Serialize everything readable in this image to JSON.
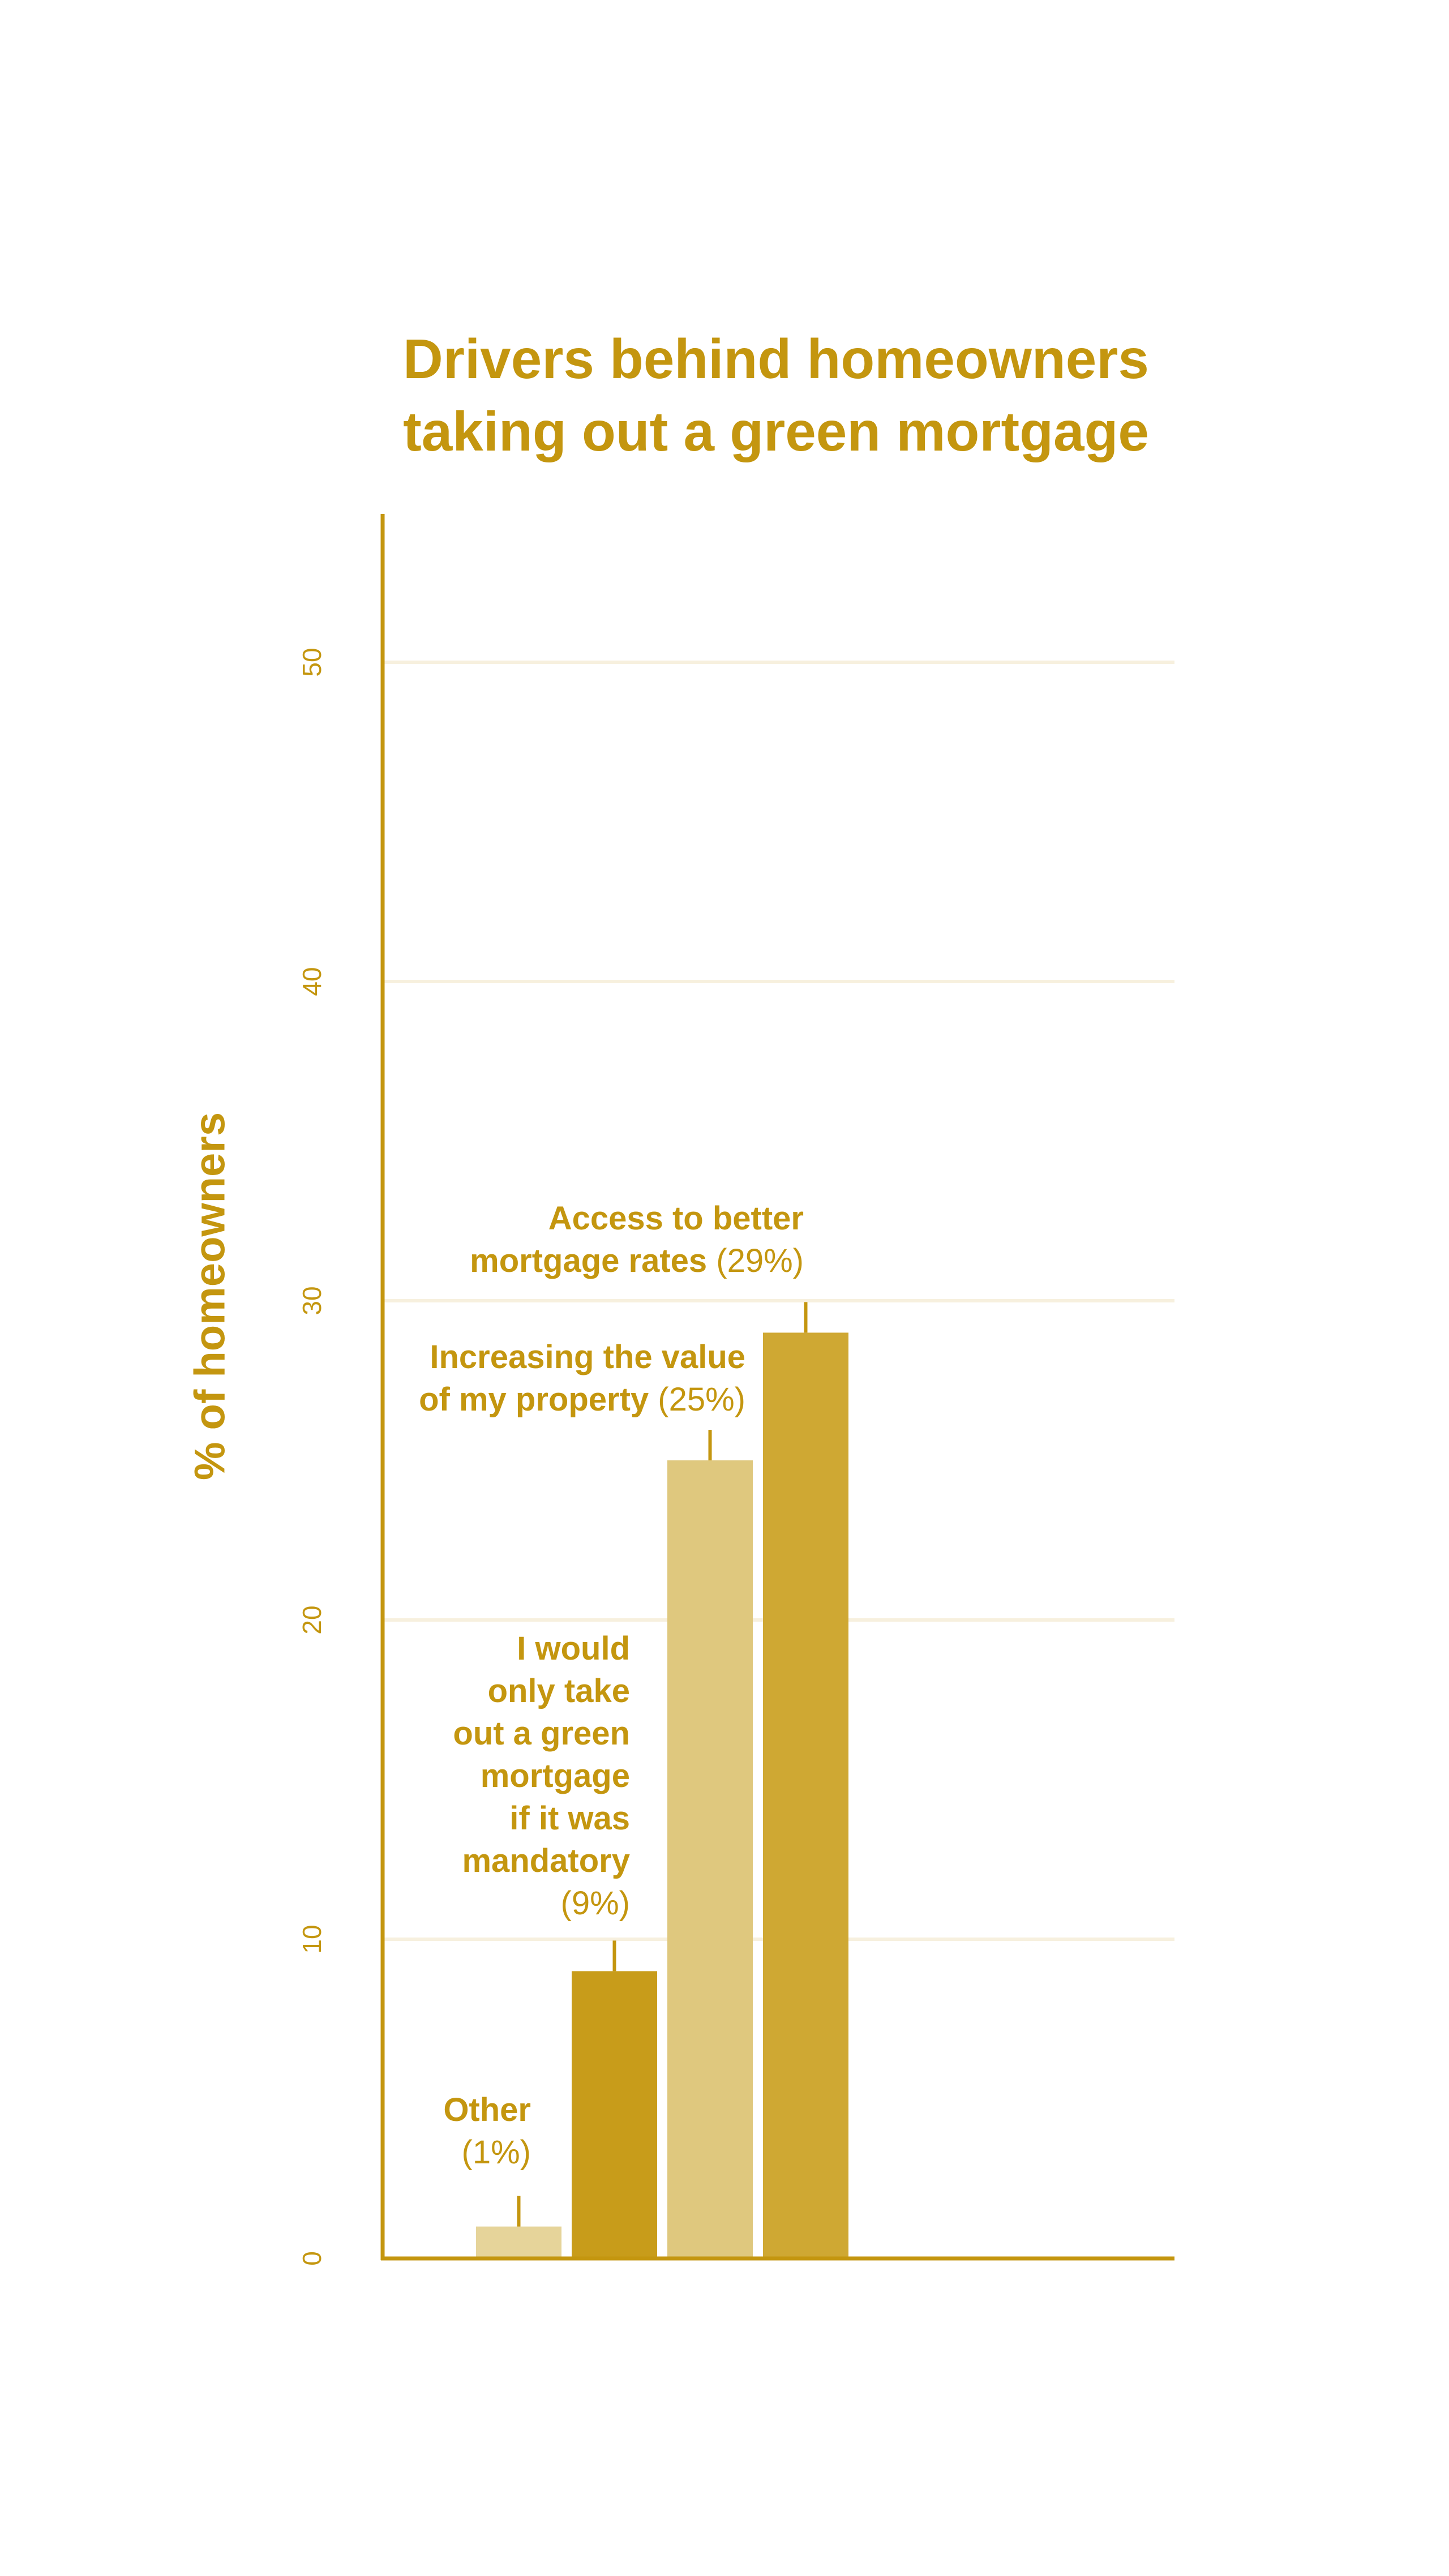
{
  "chart_data": {
    "type": "bar",
    "title": "Drivers behind homeowners taking out a green mortgage",
    "title_lines": [
      "Drivers behind homeowners",
      "taking out a green mortgage"
    ],
    "xlabel": "",
    "ylabel": "% of homeowners",
    "ylim": [
      0,
      55
    ],
    "yticks": [
      0,
      10,
      20,
      30,
      40,
      50
    ],
    "ytick_labels": [
      "0",
      "10",
      "20",
      "30",
      "40",
      "50"
    ],
    "grid": true,
    "categories": [
      "Other",
      "I would only take out a green mortgage if it was mandatory",
      "Increasing the value of my property",
      "Access to better mortgage rates"
    ],
    "values": [
      1,
      9,
      25,
      29
    ],
    "colors": [
      "#E6D49A",
      "#C89C1A",
      "#DFC87E",
      "#CFA833"
    ],
    "annotations": [
      {
        "label": "Other\n",
        "value": "(1%)"
      },
      {
        "label": "I would\nonly take\nout a green\nmortgage\nif it was\nmandatory\n",
        "value": "(9%)"
      },
      {
        "label": "Increasing the value\nof my property ",
        "value": "(25%)"
      },
      {
        "label": "Access to better\nmortgage rates ",
        "value": "(29%)"
      }
    ],
    "axis_color": "#C4960F",
    "grid_color": "#F7F0DE"
  }
}
